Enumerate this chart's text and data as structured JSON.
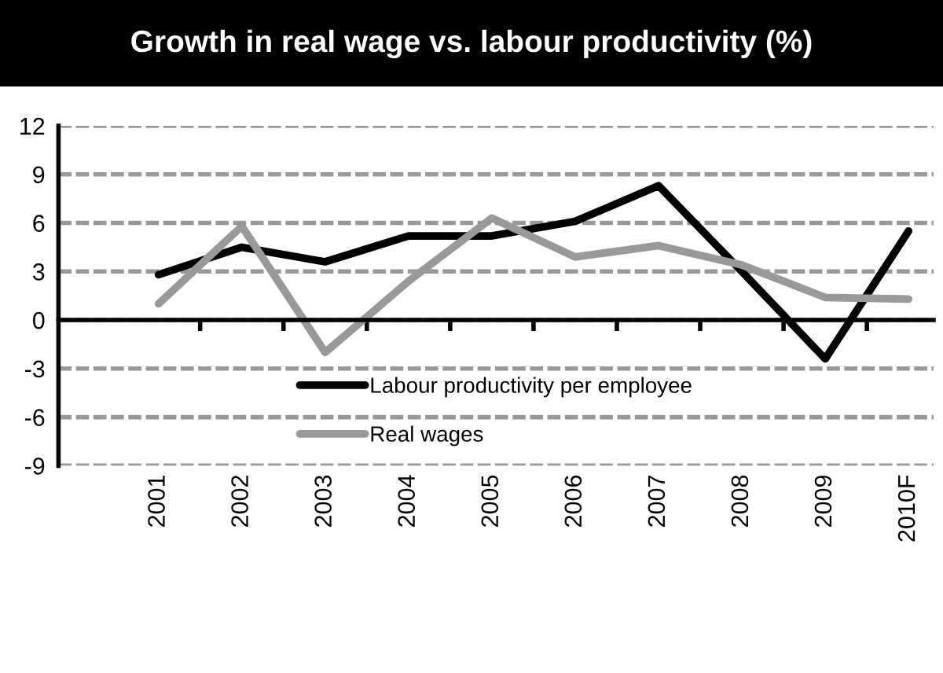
{
  "chart_data": {
    "type": "line",
    "title": "Growth in real wage vs. labour productivity (%)",
    "categories": [
      "2001",
      "2002",
      "2003",
      "2004",
      "2005",
      "2006",
      "2007",
      "2008",
      "2009",
      "2010F"
    ],
    "series": [
      {
        "name": "Labour productivity per employee",
        "color": "#000000",
        "values": [
          2.8,
          4.5,
          3.6,
          5.2,
          5.2,
          6.1,
          8.3,
          3.0,
          -2.4,
          5.5
        ]
      },
      {
        "name": "Real wages",
        "color": "#999999",
        "values": [
          1.0,
          5.8,
          -2.0,
          2.4,
          6.3,
          3.9,
          4.6,
          3.4,
          1.4,
          1.3
        ]
      }
    ],
    "ylim": [
      -9,
      12
    ],
    "yticks": [
      -9,
      -6,
      -3,
      0,
      3,
      6,
      9,
      12
    ],
    "grid": "y",
    "legend": "bottom",
    "marker": "none",
    "line_style": "solid"
  }
}
